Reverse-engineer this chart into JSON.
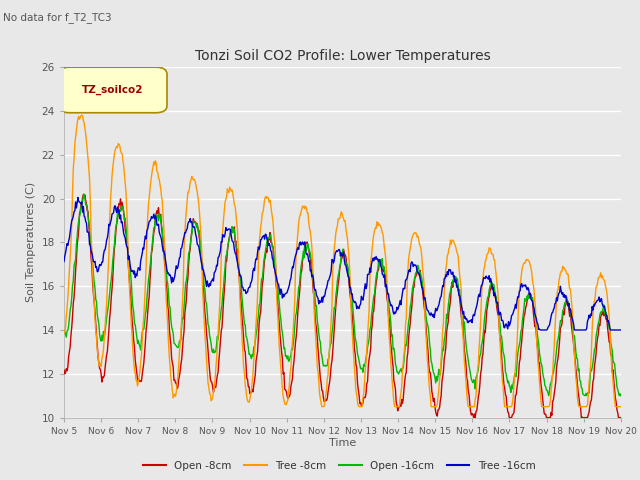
{
  "title": "Tonzi Soil CO2 Profile: Lower Temperatures",
  "subtitle": "No data for f_T2_TC3",
  "legend_label": "TZ_soilco2",
  "xlabel": "Time",
  "ylabel": "Soil Temperatures (C)",
  "ylim": [
    10,
    26
  ],
  "yticks": [
    10,
    12,
    14,
    16,
    18,
    20,
    22,
    24,
    26
  ],
  "xtick_labels": [
    "Nov 5",
    "Nov 6",
    "Nov 7",
    "Nov 8",
    "Nov 9",
    "Nov 10",
    "Nov 11",
    "Nov 12",
    "Nov 13",
    "Nov 14",
    "Nov 15",
    "Nov 16",
    "Nov 17",
    "Nov 18",
    "Nov 19",
    "Nov 20"
  ],
  "series_colors": [
    "#cc0000",
    "#ff9900",
    "#00bb00",
    "#0000cc"
  ],
  "series_names": [
    "Open -8cm",
    "Tree -8cm",
    "Open -16cm",
    "Tree -16cm"
  ],
  "fig_bg_color": "#e8e8e8",
  "plot_bg_color": "#e8e8e8"
}
